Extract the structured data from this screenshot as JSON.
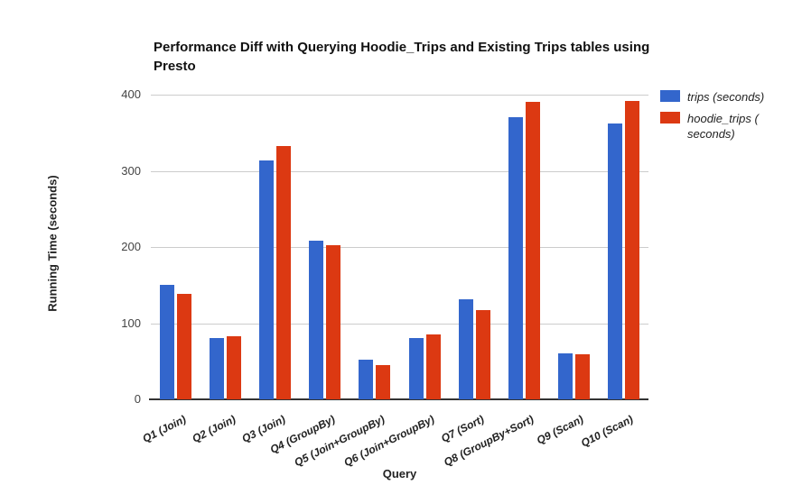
{
  "chart_data": {
    "type": "bar",
    "title": "Performance Diff with Querying Hoodie_Trips and Existing Trips tables using Presto",
    "xlabel": "Query",
    "ylabel": "Running Time (seconds)",
    "categories": [
      "Q1 (Join)",
      "Q2 (Join)",
      "Q3 (Join)",
      "Q4 (GroupBy)",
      "Q5 (Join+GroupBy)",
      "Q6 (Join+GroupBy)",
      "Q7 (Sort)",
      "Q8 (GroupBy+Sort)",
      "Q9 (Scan)",
      "Q10 (Scan)"
    ],
    "series": [
      {
        "name": "trips (seconds)",
        "color": "#3366CC",
        "values": [
          150,
          80,
          314,
          208,
          52,
          81,
          131,
          371,
          60,
          362
        ]
      },
      {
        "name": "hoodie_trips ( seconds)",
        "color": "#DC3912",
        "values": [
          138,
          83,
          333,
          202,
          45,
          85,
          117,
          390,
          59,
          392
        ]
      }
    ],
    "ylim": [
      0,
      400
    ],
    "yticks": [
      0,
      100,
      200,
      300,
      400
    ],
    "grid": true,
    "legend_position": "right"
  },
  "colors": {
    "trips": "#3366CC",
    "hoodie_trips": "#DC3912",
    "gridline": "#CCCCCC",
    "axis_line": "#333333",
    "tick_text": "#444444"
  }
}
